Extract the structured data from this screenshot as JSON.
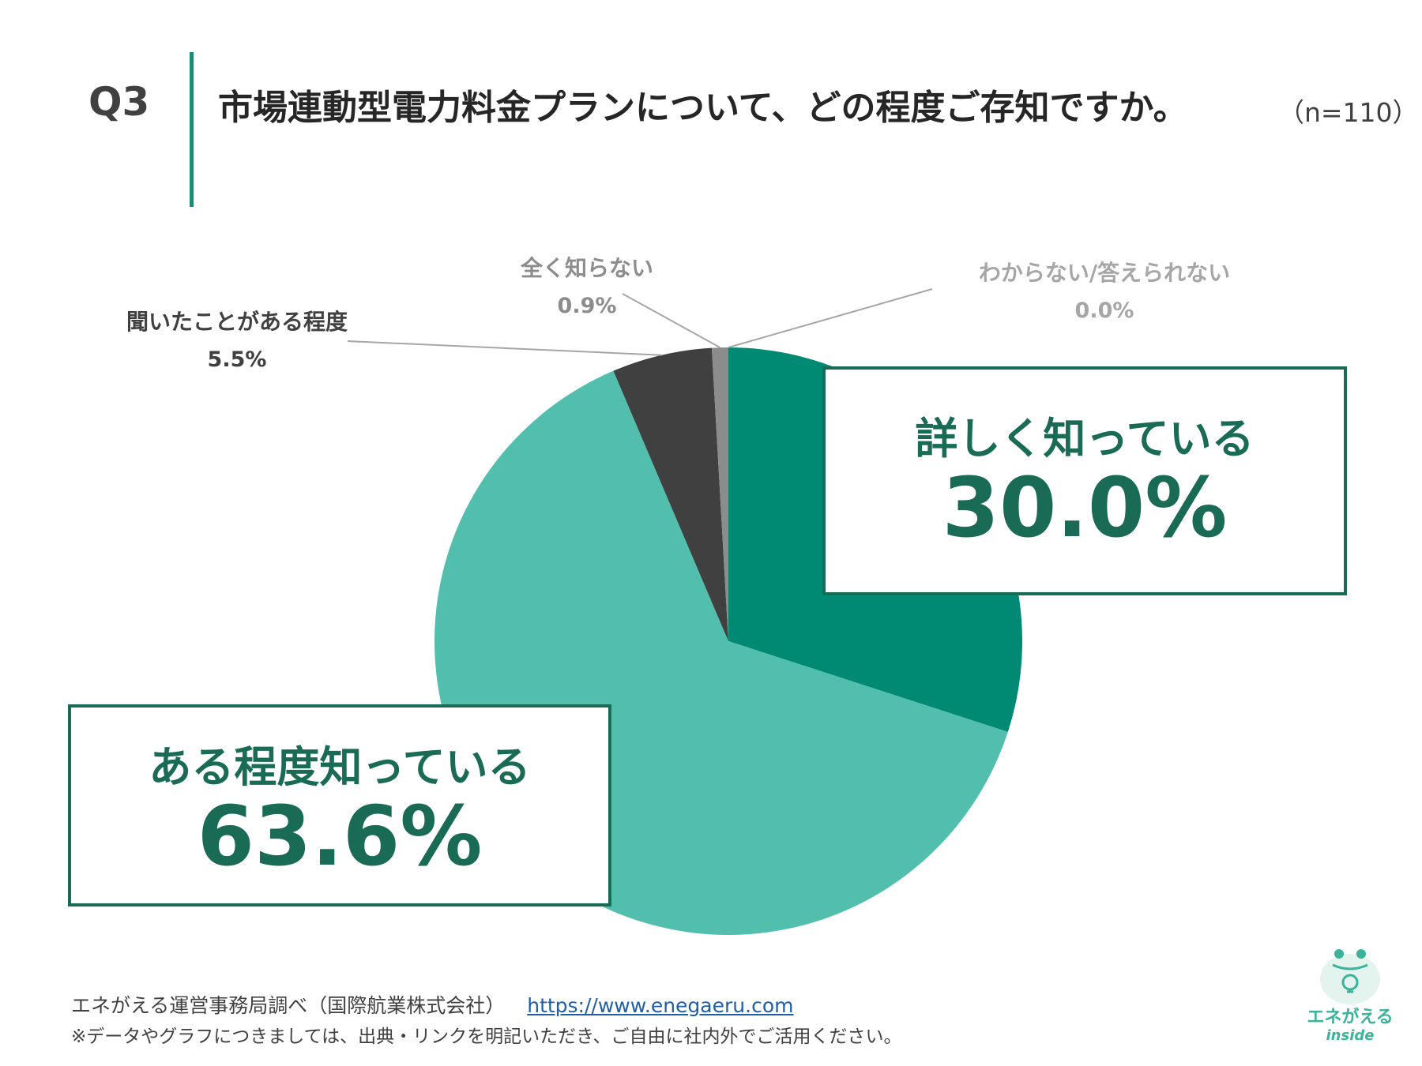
{
  "header": {
    "q_label": "Q3",
    "title": "市場連動型電力料金プランについて、どの程度ご存知ですか。",
    "n_label": "（n=110）"
  },
  "chart_data": {
    "type": "pie",
    "categories": [
      "詳しく知っている",
      "ある程度知っている",
      "聞いたことがある程度",
      "全く知らない",
      "わからない/答えられない"
    ],
    "values": [
      30.0,
      63.6,
      5.5,
      0.9,
      0.0
    ],
    "labels": [
      "30.0%",
      "63.6%",
      "5.5%",
      "0.9%",
      "0.0%"
    ],
    "colors": [
      "#008a73",
      "#52bfae",
      "#404040",
      "#8c8c8c",
      "#bfbfbf"
    ]
  },
  "footer": {
    "source": "エネがえる運営事務局調べ（国際航業株式会社）",
    "link": "https://www.enegaeru.com",
    "note": "※データやグラフにつきましては、出典・リンクを明記いただき、ご自由に社内外でご活用ください。"
  },
  "logo": {
    "name": "エネがえる",
    "sub": "inside"
  }
}
